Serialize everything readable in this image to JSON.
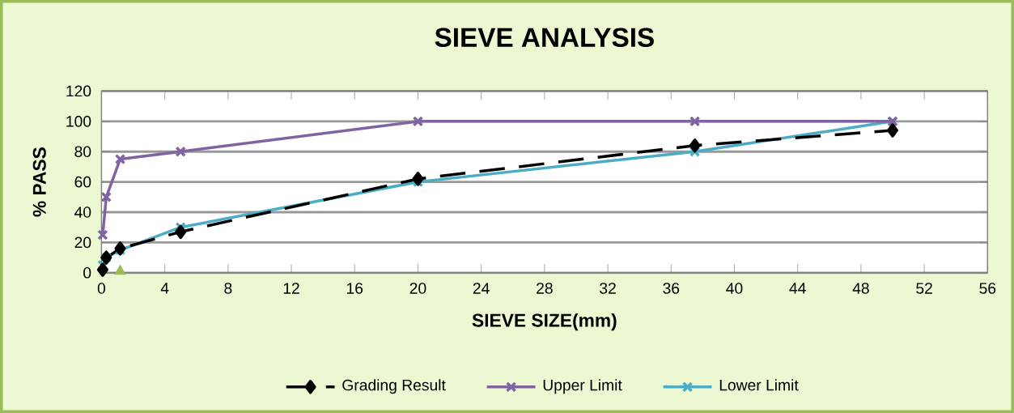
{
  "chart_data": {
    "type": "line",
    "title": "SIEVE ANALYSIS",
    "xlabel": "SIEVE SIZE(mm)",
    "ylabel": "% PASS",
    "xlim": [
      0,
      56
    ],
    "xticks": [
      0,
      4,
      8,
      12,
      16,
      20,
      24,
      28,
      32,
      36,
      40,
      44,
      48,
      52,
      56
    ],
    "ylim": [
      0,
      120
    ],
    "yticks": [
      0,
      20,
      40,
      60,
      80,
      100,
      120
    ],
    "grid": "y",
    "legend": "bottom",
    "series": [
      {
        "name": "Grading Result",
        "color": "#000000",
        "marker": "diamond",
        "line_style": "dashed",
        "x": [
          0.075,
          0.3,
          1.18,
          5,
          20,
          37.5,
          50
        ],
        "values": [
          2,
          10,
          16,
          27,
          62,
          84,
          94
        ]
      },
      {
        "name": "Upper Limit",
        "color": "#8064a2",
        "marker": "cross",
        "line_style": "solid",
        "x": [
          0.075,
          0.3,
          1.18,
          5,
          20,
          37.5,
          50
        ],
        "values": [
          25,
          50,
          75,
          80,
          100,
          100,
          100
        ]
      },
      {
        "name": "Lower Limit",
        "color": "#4bacc6",
        "marker": "cross",
        "line_style": "solid",
        "x": [
          0.075,
          0.3,
          1.18,
          5,
          20,
          37.5,
          50
        ],
        "values": [
          5,
          10,
          15,
          30,
          60,
          80,
          100
        ]
      },
      {
        "type": "scatter",
        "color": "#9bbb59",
        "marker": "triangle",
        "x": [
          1.18
        ],
        "values": [
          1
        ]
      }
    ]
  }
}
